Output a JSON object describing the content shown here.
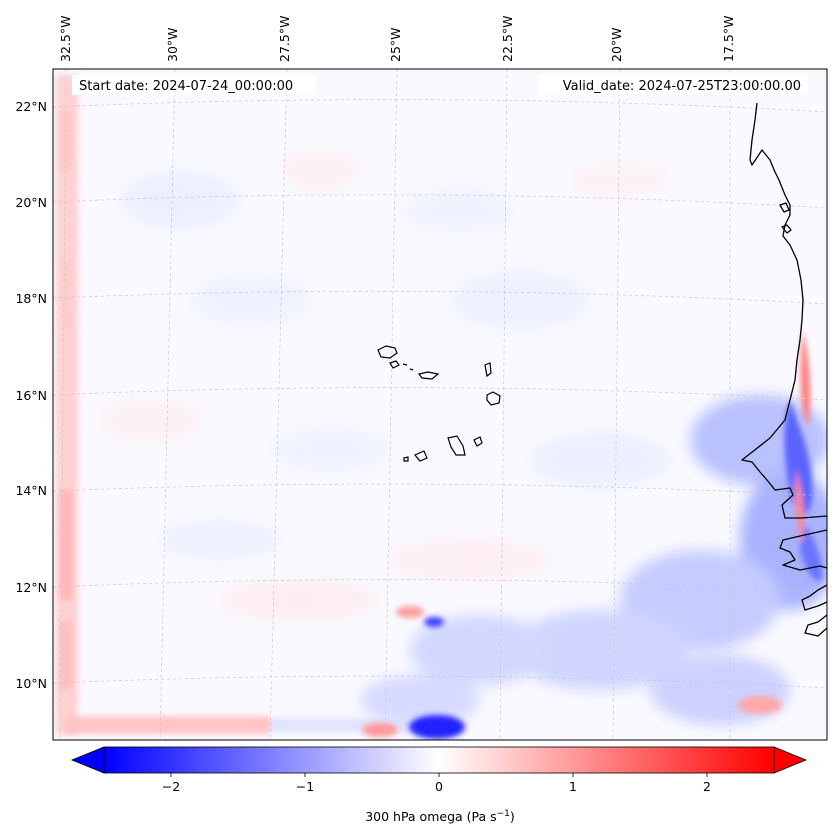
{
  "header": {
    "start_date": "Start date: 2024-07-24_00:00:00",
    "valid_date": "Valid_date: 2024-07-25T23:00:00.00"
  },
  "map": {
    "lon_labels": [
      "32.5°W",
      "30°W",
      "27.5°W",
      "25°W",
      "22.5°W",
      "20°W",
      "17.5°W"
    ],
    "lat_labels": [
      "22°N",
      "20°N",
      "18°N",
      "16°N",
      "14°N",
      "12°N",
      "10°N"
    ],
    "field": "300 hPa omega",
    "gridlines": true
  },
  "colorbar": {
    "label_main": "300 hPa omega (Pa s",
    "label_exp": "−1",
    "label_close": ")",
    "ticks": [
      "−2",
      "−1",
      "0",
      "1",
      "2"
    ],
    "tick_values": [
      -2,
      -1,
      0,
      1,
      2
    ],
    "range": [
      -2.5,
      2.5
    ],
    "extend": "both",
    "colormap": "bwr",
    "color_min": "#0000ff",
    "color_mid": "#ffffff",
    "color_max": "#ff0000"
  }
}
